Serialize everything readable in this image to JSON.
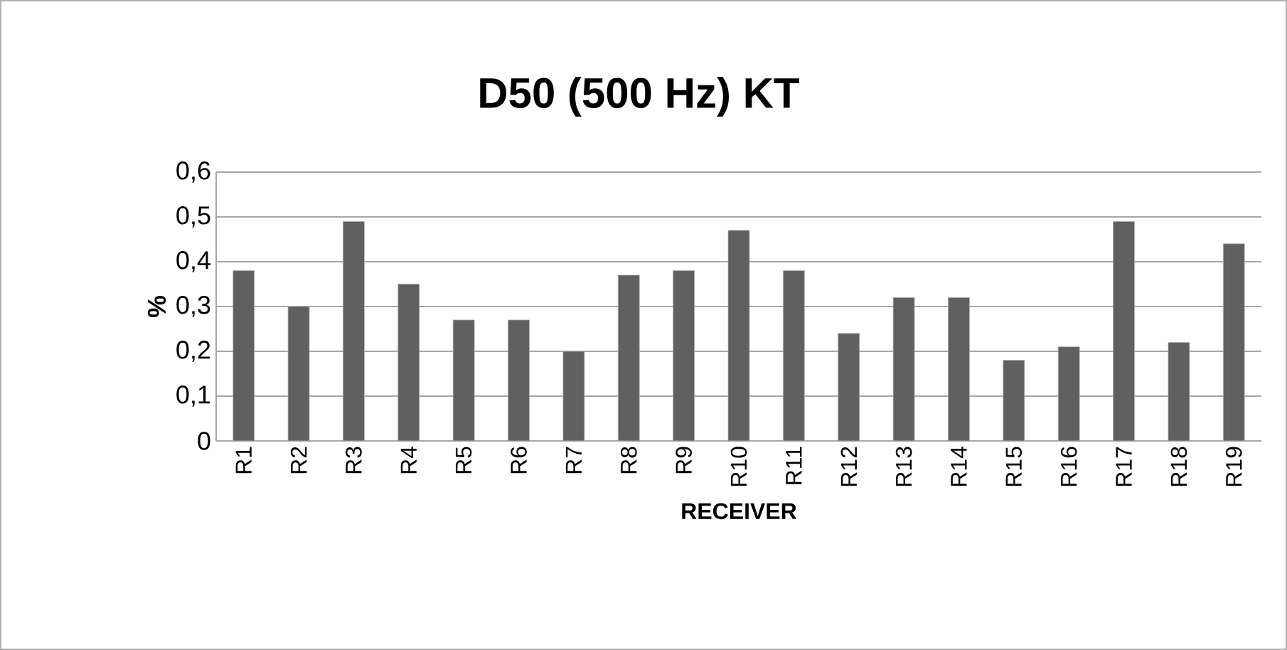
{
  "chart_data": {
    "type": "bar",
    "title": "D50 (500 Hz) KT",
    "xlabel": "RECEIVER",
    "ylabel": "%",
    "categories": [
      "R1",
      "R2",
      "R3",
      "R4",
      "R5",
      "R6",
      "R7",
      "R8",
      "R9",
      "R10",
      "R11",
      "R12",
      "R13",
      "R14",
      "R15",
      "R16",
      "R17",
      "R18",
      "R19"
    ],
    "values": [
      0.38,
      0.3,
      0.49,
      0.35,
      0.27,
      0.27,
      0.2,
      0.37,
      0.38,
      0.47,
      0.38,
      0.24,
      0.32,
      0.32,
      0.18,
      0.21,
      0.49,
      0.22,
      0.44
    ],
    "color": "#606060",
    "ylim": [
      0,
      0.6
    ],
    "yticks": [
      0,
      {
        "value": 0.1,
        "label": "0,1"
      },
      {
        "value": 0.2,
        "label": "0,2"
      },
      {
        "value": 0.3,
        "label": "0,3"
      },
      {
        "value": 0.4,
        "label": "0,4"
      },
      {
        "value": 0.5,
        "label": "0,5"
      },
      {
        "value": 0.6,
        "label": "0,6"
      }
    ],
    "grid": "y"
  }
}
